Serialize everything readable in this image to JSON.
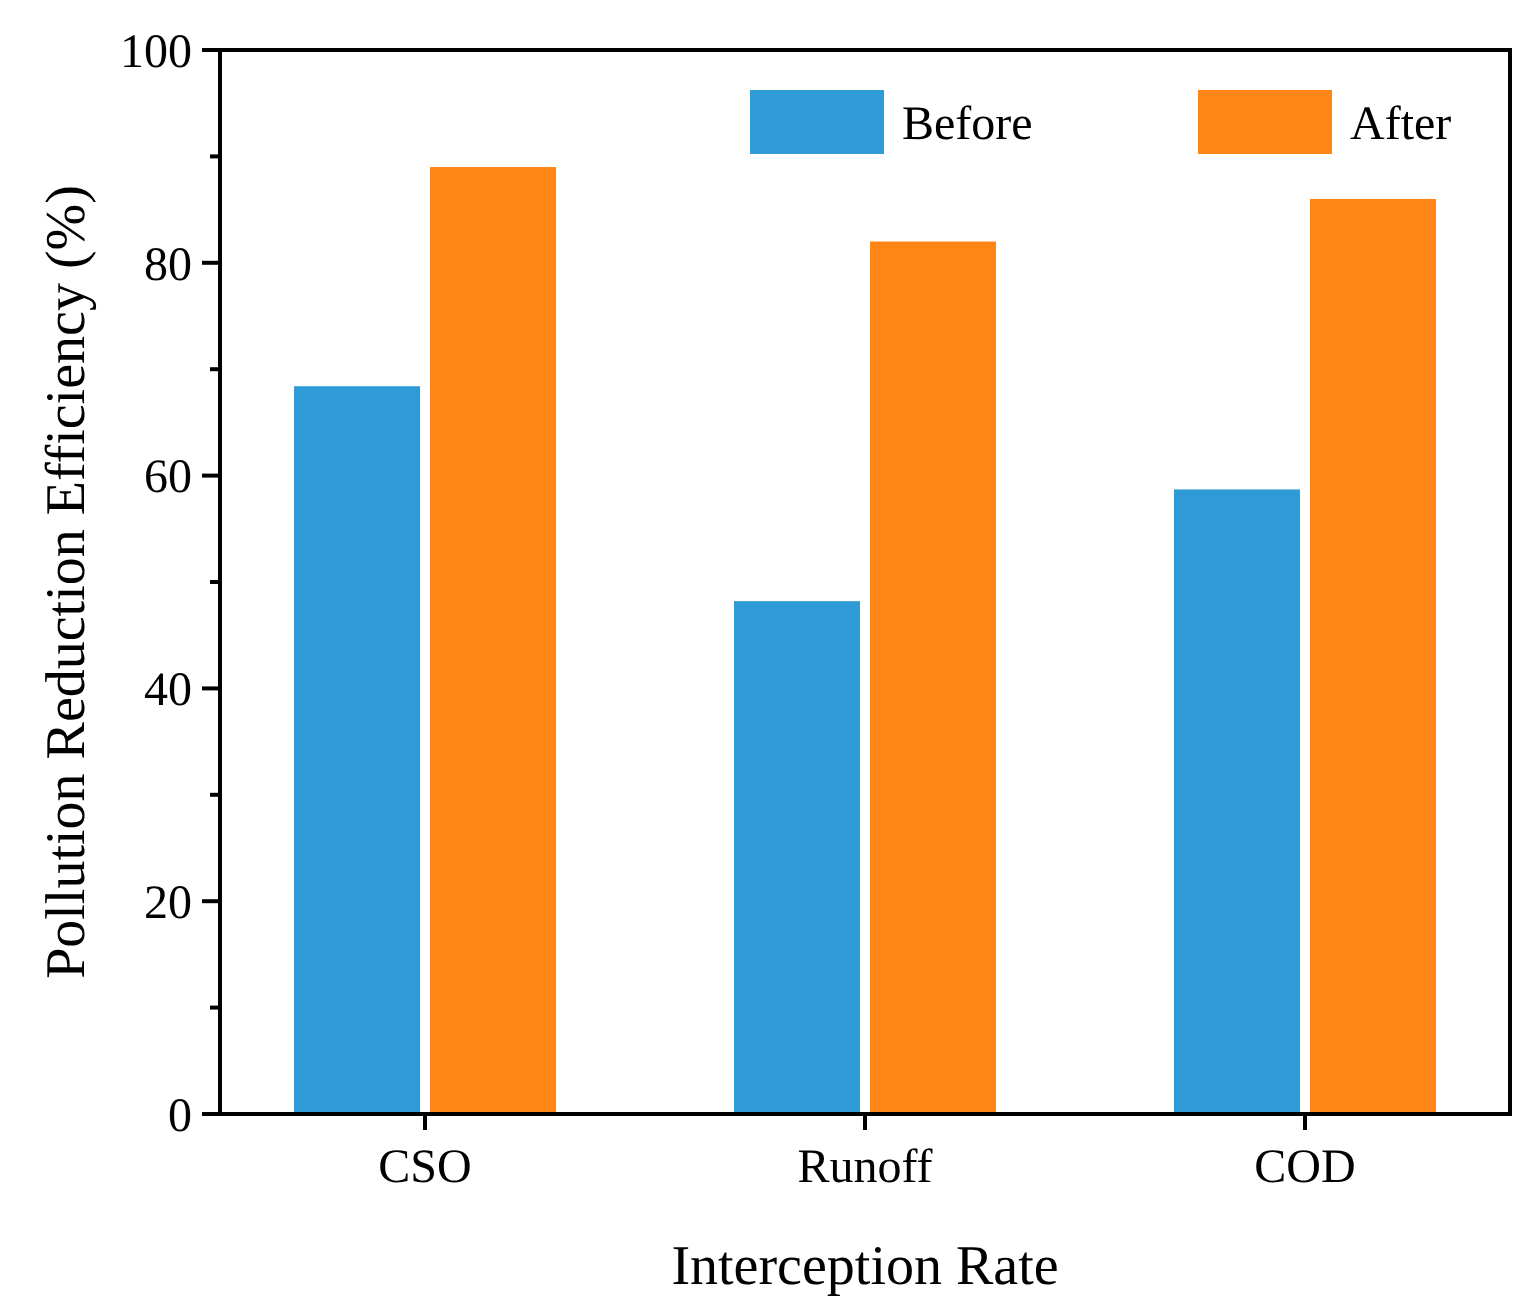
{
  "chart_data": {
    "type": "bar",
    "xlabel": "Interception Rate",
    "ylabel": "Pollution Reduction Efficiency (%)",
    "categories": [
      "CSO",
      "Runoff",
      "COD"
    ],
    "series": [
      {
        "name": "Before",
        "color": "#2e9bd6",
        "values": [
          68.4,
          48.2,
          58.7
        ]
      },
      {
        "name": "After",
        "color": "#ff8517",
        "values": [
          89,
          82,
          86
        ]
      }
    ],
    "ylim": [
      0,
      100
    ],
    "yticks": [
      0,
      {
        "value": 10,
        "label": null
      },
      20,
      {
        "value": 30,
        "label": null
      },
      40,
      {
        "value": 50,
        "label": null
      },
      60,
      {
        "value": 70,
        "label": null
      },
      80,
      {
        "value": 90,
        "label": null
      },
      100
    ],
    "legend": "top right",
    "grid": false
  }
}
